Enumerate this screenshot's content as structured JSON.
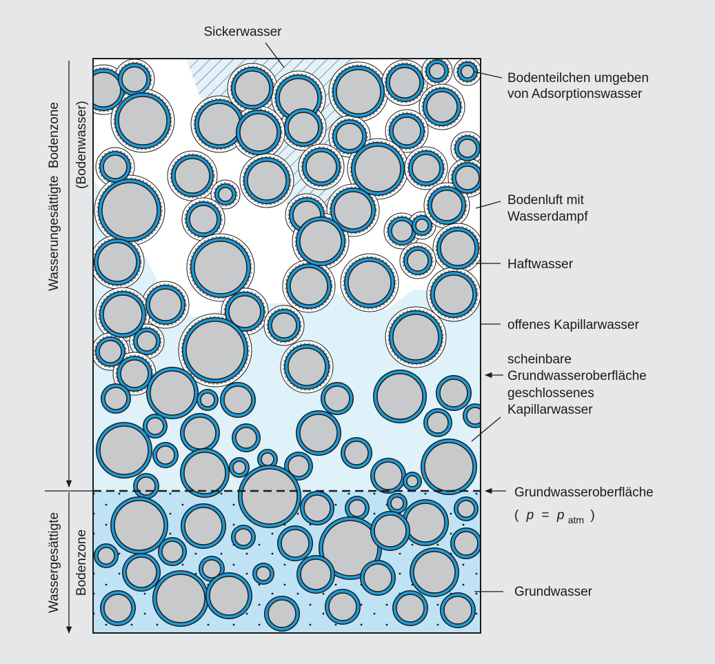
{
  "title": "Sickerwasser",
  "zones": {
    "unsaturated": [
      "Wasserungesättigte  Bodenzone",
      "(Bodenwasser)"
    ],
    "saturated": [
      "Wassergesättigte",
      "Bodenzone"
    ]
  },
  "labels": [
    {
      "lines": [
        "Bodenteilchen umgeben",
        "von Adsorptionswasser"
      ]
    },
    {
      "lines": [
        "Bodenluft mit",
        "Wasserdampf"
      ]
    },
    {
      "lines": [
        "Haftwasser"
      ]
    },
    {
      "lines": [
        "offenes Kapillarwasser"
      ]
    },
    {
      "lines": [
        "scheinbare",
        "Grundwasseroberfläche"
      ]
    },
    {
      "lines": [
        "geschlossenes",
        "Kapillarwasser"
      ]
    },
    {
      "lines": [
        "Grundwasseroberfläche"
      ]
    },
    {
      "lines": [
        "Grundwasser"
      ]
    }
  ],
  "formula": [
    "(",
    "p",
    "=",
    "p",
    "atm",
    ")"
  ]
}
